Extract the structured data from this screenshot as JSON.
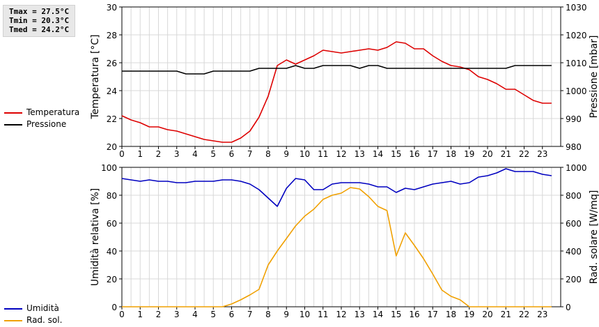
{
  "stats": {
    "tmax": "Tmax = 27.5°C",
    "tmin": "Tmin = 20.3°C",
    "tmed": "Tmed = 24.2°C"
  },
  "legend_top": [
    {
      "label": "Temperatura",
      "color": "#dd0000"
    },
    {
      "label": "Pressione",
      "color": "#000000"
    }
  ],
  "legend_bottom": [
    {
      "label": "Umidità",
      "color": "#0000c0"
    },
    {
      "label": "Rad. sol.",
      "color": "#f0a000"
    }
  ],
  "chart_data": [
    {
      "type": "line",
      "xlabel": "",
      "xlim": [
        0,
        24
      ],
      "xticks": [
        "0",
        "1",
        "2",
        "3",
        "4",
        "5",
        "6",
        "7",
        "8",
        "9",
        "10",
        "11",
        "12",
        "13",
        "14",
        "15",
        "16",
        "17",
        "18",
        "19",
        "20",
        "21",
        "22",
        "23"
      ],
      "ylabel": "Temperatura [°C]",
      "ylim": [
        20,
        30
      ],
      "yticks": [
        "20",
        "22",
        "24",
        "26",
        "28",
        "30"
      ],
      "y2label": "Pressione [mbar]",
      "y2lim": [
        980,
        1030
      ],
      "y2ticks": [
        "980",
        "990",
        "1000",
        "1010",
        "1020",
        "1030"
      ],
      "grid": true,
      "series": [
        {
          "name": "Temperatura",
          "axis": "left",
          "color": "#dd0000",
          "x": [
            0,
            0.5,
            1,
            1.5,
            2,
            2.5,
            3,
            3.5,
            4,
            4.5,
            5,
            5.5,
            6,
            6.5,
            7,
            7.5,
            8,
            8.5,
            9,
            9.5,
            10,
            10.5,
            11,
            11.5,
            12,
            12.5,
            13,
            13.5,
            14,
            14.5,
            15,
            15.5,
            16,
            16.5,
            17,
            17.5,
            18,
            18.5,
            19,
            19.5,
            20,
            20.5,
            21,
            21.5,
            22,
            22.5,
            23,
            23.5
          ],
          "y": [
            22.2,
            21.9,
            21.7,
            21.4,
            21.4,
            21.2,
            21.1,
            20.9,
            20.7,
            20.5,
            20.4,
            20.3,
            20.3,
            20.6,
            21.1,
            22.1,
            23.6,
            25.8,
            26.2,
            25.9,
            26.2,
            26.5,
            26.9,
            26.8,
            26.7,
            26.8,
            26.9,
            27.0,
            26.9,
            27.1,
            27.5,
            27.4,
            27.0,
            27.0,
            26.5,
            26.1,
            25.8,
            25.7,
            25.5,
            25.0,
            24.8,
            24.5,
            24.1,
            24.1,
            23.7,
            23.3,
            23.1,
            23.1
          ]
        },
        {
          "name": "Pressione",
          "axis": "right",
          "color": "#000000",
          "x": [
            0,
            0.5,
            1,
            1.5,
            2,
            2.5,
            3,
            3.5,
            4,
            4.5,
            5,
            5.5,
            6,
            6.5,
            7,
            7.5,
            8,
            8.5,
            9,
            9.5,
            10,
            10.5,
            11,
            11.5,
            12,
            12.5,
            13,
            13.5,
            14,
            14.5,
            15,
            15.5,
            16,
            16.5,
            17,
            17.5,
            18,
            18.5,
            19,
            19.5,
            20,
            20.5,
            21,
            21.5,
            22,
            22.5,
            23,
            23.5
          ],
          "y": [
            1007,
            1007,
            1007,
            1007,
            1007,
            1007,
            1007,
            1006,
            1006,
            1006,
            1007,
            1007,
            1007,
            1007,
            1007,
            1008,
            1008,
            1008,
            1008,
            1009,
            1008,
            1008,
            1009,
            1009,
            1009,
            1009,
            1008,
            1009,
            1009,
            1008,
            1008,
            1008,
            1008,
            1008,
            1008,
            1008,
            1008,
            1008,
            1008,
            1008,
            1008,
            1008,
            1008,
            1009,
            1009,
            1009,
            1009,
            1009
          ]
        }
      ]
    },
    {
      "type": "line",
      "xlabel": "",
      "xlim": [
        0,
        24
      ],
      "xticks": [
        "0",
        "1",
        "2",
        "3",
        "4",
        "5",
        "6",
        "7",
        "8",
        "9",
        "10",
        "11",
        "12",
        "13",
        "14",
        "15",
        "16",
        "17",
        "18",
        "19",
        "20",
        "21",
        "22",
        "23"
      ],
      "ylabel": "Umidità relativa [%]",
      "ylim": [
        0,
        100
      ],
      "yticks": [
        "0",
        "20",
        "40",
        "60",
        "80",
        "100"
      ],
      "y2label": "Rad. solare [W/mq]",
      "y2lim": [
        0,
        1000
      ],
      "y2ticks": [
        "0",
        "200",
        "400",
        "600",
        "800",
        "1000"
      ],
      "grid": true,
      "series": [
        {
          "name": "Umidità",
          "axis": "left",
          "color": "#0000c0",
          "x": [
            0,
            0.5,
            1,
            1.5,
            2,
            2.5,
            3,
            3.5,
            4,
            4.5,
            5,
            5.5,
            6,
            6.5,
            7,
            7.5,
            8,
            8.5,
            9,
            9.5,
            10,
            10.5,
            11,
            11.5,
            12,
            12.5,
            13,
            13.5,
            14,
            14.5,
            15,
            15.5,
            16,
            16.5,
            17,
            17.5,
            18,
            18.5,
            19,
            19.5,
            20,
            20.5,
            21,
            21.5,
            22,
            22.5,
            23,
            23.5
          ],
          "y": [
            92,
            91,
            90,
            91,
            90,
            90,
            89,
            89,
            90,
            90,
            90,
            91,
            91,
            90,
            88,
            84,
            78,
            72,
            85,
            92,
            91,
            84,
            84,
            88,
            89,
            89,
            89,
            88,
            86,
            86,
            82,
            85,
            84,
            86,
            88,
            89,
            90,
            88,
            89,
            93,
            94,
            96,
            99,
            97,
            97,
            97,
            95,
            94
          ]
        },
        {
          "name": "Rad. sol.",
          "axis": "right",
          "color": "#f0a000",
          "x": [
            0,
            0.5,
            1,
            1.5,
            2,
            2.5,
            3,
            3.5,
            4,
            4.5,
            5,
            5.5,
            6,
            6.5,
            7,
            7.5,
            8,
            8.5,
            9,
            9.5,
            10,
            10.5,
            11,
            11.5,
            12,
            12.5,
            13,
            13.5,
            14,
            14.5,
            15,
            15.5,
            16,
            16.5,
            17,
            17.5,
            18,
            18.5,
            19,
            19.5,
            20,
            20.5,
            21,
            21.5,
            22,
            22.5,
            23,
            23.5
          ],
          "y": [
            0,
            0,
            0,
            0,
            0,
            0,
            0,
            0,
            0,
            0,
            0,
            0,
            20,
            50,
            85,
            125,
            300,
            400,
            490,
            580,
            650,
            700,
            770,
            800,
            815,
            855,
            845,
            790,
            720,
            690,
            365,
            530,
            440,
            345,
            235,
            120,
            75,
            50,
            0,
            0,
            0,
            0,
            0,
            0,
            0,
            0,
            0,
            0
          ]
        }
      ]
    }
  ]
}
